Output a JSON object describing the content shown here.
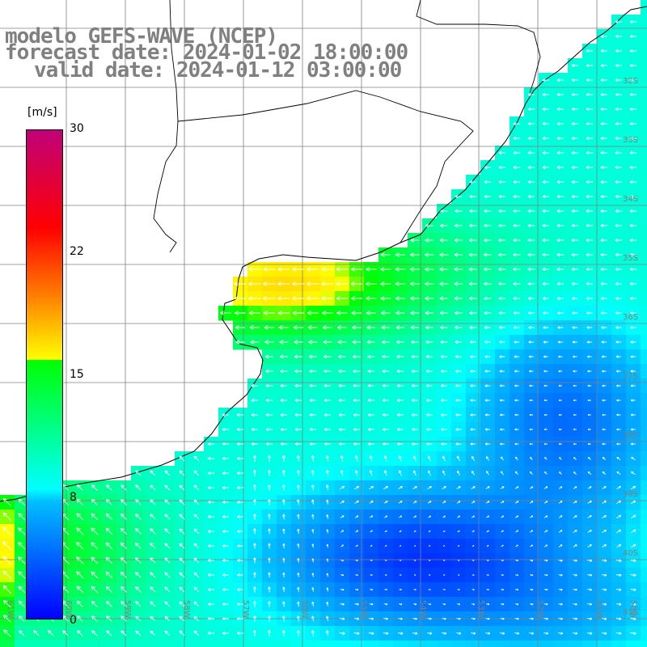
{
  "title": {
    "line1": "modelo GEFS-WAVE (NCEP)",
    "line2": "forecast date: 2024-01-02 18:00:00",
    "line3": "valid date: 2024-01-12 03:00:00"
  },
  "colorbar": {
    "unit": "[m/s]",
    "ticks": [
      "30",
      "22",
      "15",
      "8",
      "0"
    ],
    "colors": [
      "#0000ff",
      "#00bfff",
      "#00ffff",
      "#00ff00",
      "#ffff00",
      "#ff8000",
      "#ff0000",
      "#c0007a"
    ]
  },
  "lat_labels": [
    "32S",
    "33S",
    "34S",
    "35S",
    "36S",
    "37S",
    "38S",
    "39S",
    "40S",
    "41S"
  ],
  "lon_labels": [
    "61W",
    "60W",
    "59W",
    "58W",
    "57W",
    "56W",
    "55W",
    "54W",
    "53W",
    "52W",
    "51W",
    "50W"
  ],
  "map_colors": {
    "land": "#ffffff",
    "grid": "#808080",
    "coast": "#000000",
    "arrow": "#ffffff"
  }
}
